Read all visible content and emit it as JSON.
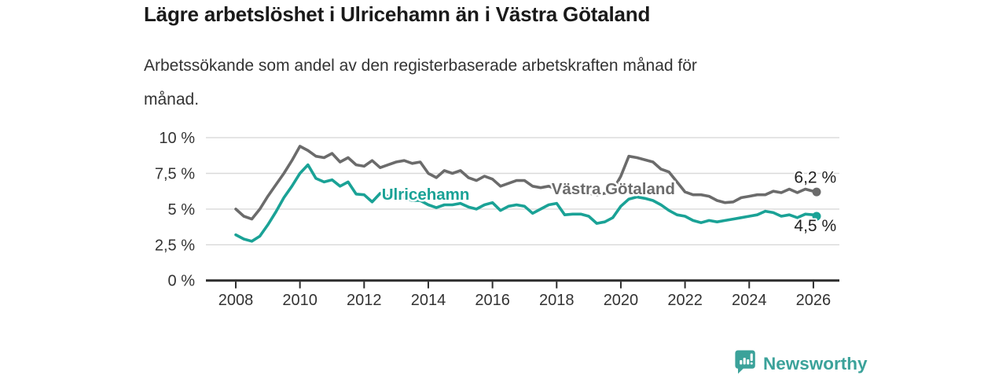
{
  "header": {
    "title": "Lägre arbetslöshet i Ulricehamn än i Västra Götaland",
    "subtitle_lines": [
      "Arbetssökande som andel av den registerbaserade arbetskraften månad för",
      "månad."
    ]
  },
  "footer": {
    "brand": "Newsworthy"
  },
  "colors": {
    "teal": "#1aa296",
    "gray": "#6b6b6b",
    "grid": "#d9d9d9",
    "axis": "#2d2d2d",
    "title_text": "#1a1a1a",
    "body_text": "#333333",
    "value_label_text": "#1f1f1f",
    "brand_teal": "#3ba29a"
  },
  "chart_data": {
    "type": "line",
    "title": "Lägre arbetslöshet i Ulricehamn än i Västra Götaland",
    "subtitle": "Arbetssökande som andel av den registerbaserade arbetskraften månad för månad.",
    "grid": true,
    "legend": "inline-labels",
    "xlim": [
      2007.07,
      2026.81
    ],
    "ylim": [
      0,
      10
    ],
    "x_ticks": [
      2008,
      2010,
      2012,
      2014,
      2016,
      2018,
      2020,
      2022,
      2024,
      2026
    ],
    "x_tick_labels": [
      "2008",
      "2010",
      "2012",
      "2014",
      "2016",
      "2018",
      "2020",
      "2022",
      "2024",
      "2026"
    ],
    "y_ticks": [
      {
        "value": 0,
        "label": "0 %"
      },
      {
        "value": 2.5,
        "label": "2,5 %"
      },
      {
        "value": 5,
        "label": "5 %"
      },
      {
        "value": 7.5,
        "label": "7,5 %"
      },
      {
        "value": 10,
        "label": "10 %"
      }
    ],
    "series": [
      {
        "name": "Västra Götaland",
        "color": "#6b6b6b",
        "x_start": 2008,
        "x_step": 0.25,
        "values": [
          5.0,
          4.5,
          4.3,
          5.0,
          5.9,
          6.7,
          7.5,
          8.4,
          9.4,
          9.1,
          8.7,
          8.6,
          8.9,
          8.3,
          8.6,
          8.1,
          8.0,
          8.4,
          7.9,
          8.1,
          8.3,
          8.4,
          8.2,
          8.3,
          7.5,
          7.2,
          7.7,
          7.5,
          7.7,
          7.2,
          7.0,
          7.3,
          7.1,
          6.6,
          6.8,
          7.0,
          7.0,
          6.6,
          6.5,
          6.6,
          6.4,
          6.3,
          6.4,
          6.2,
          6.1,
          6.0,
          6.1,
          6.3,
          7.3,
          8.7,
          8.6,
          8.45,
          8.3,
          7.8,
          7.6,
          6.9,
          6.2,
          6.0,
          6.0,
          5.9,
          5.6,
          5.45,
          5.5,
          5.8,
          5.9,
          6.0,
          6.0,
          6.25,
          6.15,
          6.4,
          6.15,
          6.4,
          6.25
        ],
        "end": {
          "x": 2026.1,
          "value": 6.2
        },
        "end_label": {
          "text": "6,2 %",
          "x": 2025.4,
          "y": 6.85
        },
        "inline_label": {
          "x": 2017.84,
          "y": 6.04
        }
      },
      {
        "name": "Ulricehamn",
        "color": "#1aa296",
        "x_start": 2008,
        "x_step": 0.25,
        "values": [
          3.2,
          2.9,
          2.75,
          3.1,
          3.9,
          4.8,
          5.8,
          6.6,
          7.5,
          8.1,
          7.15,
          6.9,
          7.05,
          6.6,
          6.9,
          6.05,
          6.0,
          5.5,
          6.1,
          5.9,
          5.9,
          5.8,
          5.6,
          5.6,
          5.3,
          5.1,
          5.3,
          5.3,
          5.4,
          5.15,
          5.0,
          5.3,
          5.45,
          4.9,
          5.2,
          5.3,
          5.2,
          4.7,
          5.0,
          5.3,
          5.4,
          4.6,
          4.65,
          4.65,
          4.5,
          4.0,
          4.1,
          4.4,
          5.2,
          5.7,
          5.85,
          5.75,
          5.6,
          5.3,
          4.9,
          4.6,
          4.5,
          4.2,
          4.05,
          4.2,
          4.1,
          4.2,
          4.3,
          4.4,
          4.5,
          4.6,
          4.85,
          4.75,
          4.5,
          4.6,
          4.4,
          4.65,
          4.6
        ],
        "end": {
          "x": 2026.1,
          "value": 4.5
        },
        "end_label": {
          "text": "4,5 %",
          "x": 2025.4,
          "y": 3.45
        },
        "inline_label": {
          "x": 2012.55,
          "y": 5.66
        }
      }
    ]
  }
}
